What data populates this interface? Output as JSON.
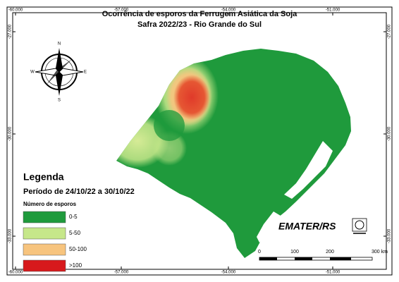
{
  "title": [
    "Ocorrência de esporos da Ferrugem Asiática da Soja",
    "Safra 2022/23 - Rio Grande do Sul"
  ],
  "grid_labels": {
    "top": [
      "-60.000",
      "-57.000",
      "-54.000",
      "-51.000"
    ],
    "bottom": [
      "-60.000",
      "-57.000",
      "-54.000",
      "-51.000"
    ],
    "left": [
      "-27.000",
      "-30.000",
      "-33.000"
    ],
    "right": [
      "-27.000",
      "-30.000",
      "-33.000"
    ]
  },
  "compass": [
    "N",
    "S",
    "E",
    "W"
  ],
  "legend": {
    "title": "Legenda",
    "period": "Período de 24/10/22 a 30/10/22",
    "subtitle": "Número de esporos",
    "items": [
      {
        "label": "0-5",
        "color": "#1f9a3c"
      },
      {
        "label": "5-50",
        "color": "#c6e78a"
      },
      {
        "label": "50-100",
        "color": "#f7c47e"
      },
      {
        "label": ">100",
        "color": "#d7191c"
      }
    ]
  },
  "scale_bar": [
    "0",
    "100",
    "200",
    "300 km"
  ],
  "logo": "EMATER/RS"
}
